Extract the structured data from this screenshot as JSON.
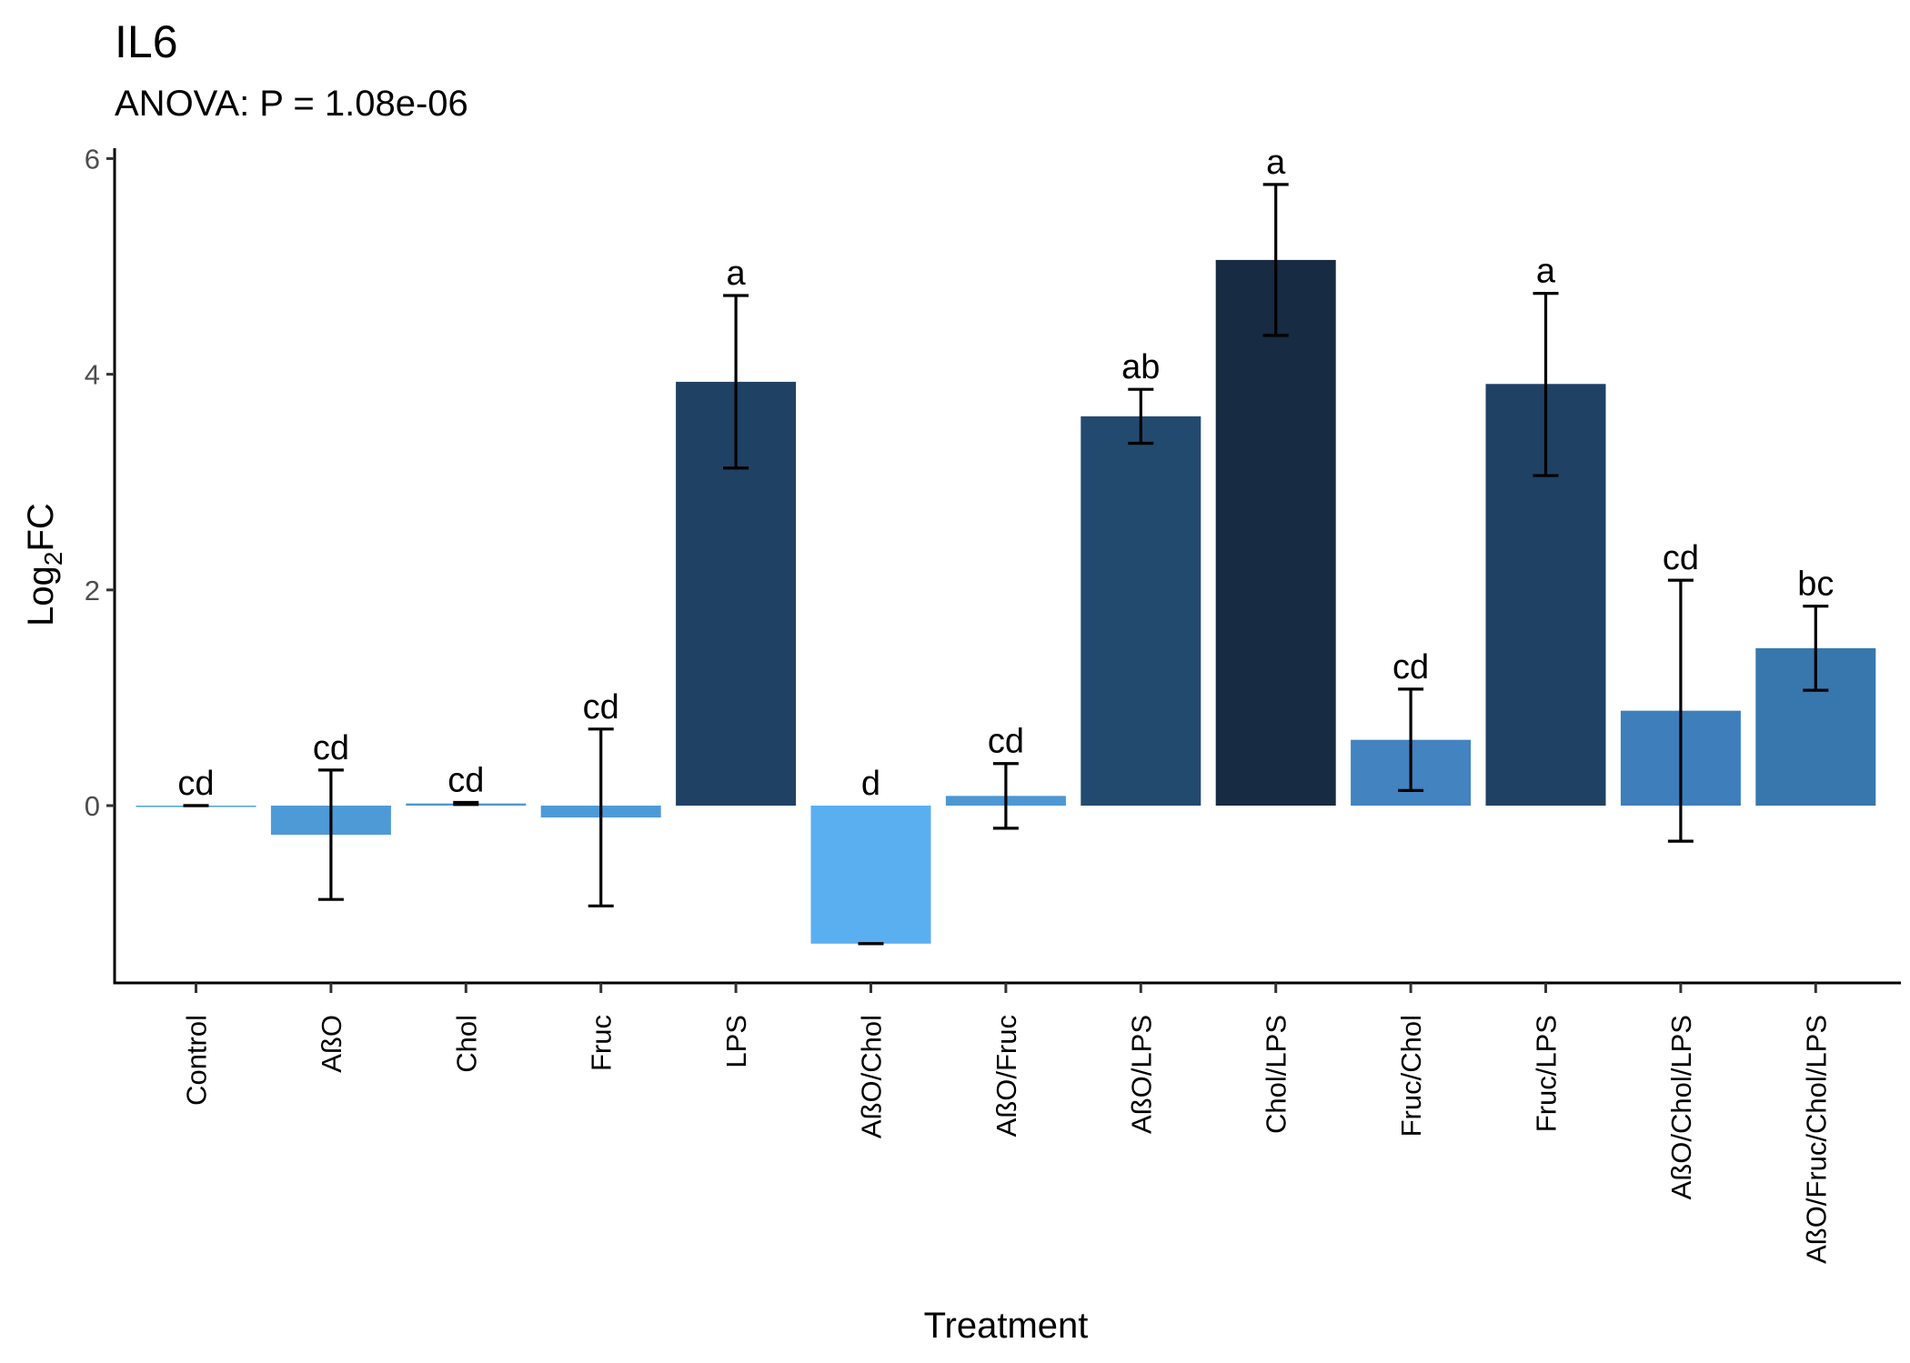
{
  "chart_data": {
    "type": "bar",
    "title": "IL6",
    "subtitle": "ANOVA: P = 1.08e-06",
    "xlabel": "Treatment",
    "ylabel": {
      "base": "Log",
      "subscript": "2",
      "suffix": "FC"
    },
    "ylim": [
      -1.6,
      6.1
    ],
    "yticks": [
      0,
      2,
      4,
      6
    ],
    "grid": false,
    "legend": "none",
    "categories": [
      "Control",
      "AßO",
      "Chol",
      "Fruc",
      "LPS",
      "AßO/Chol",
      "AßO/Fruc",
      "AßO/LPS",
      "Chol/LPS",
      "Fruc/Chol",
      "Fruc/LPS",
      "AßO/Chol/LPS",
      "AßO/Fruc/Chol/LPS"
    ],
    "values": [
      0.0,
      -0.27,
      0.02,
      -0.11,
      3.93,
      -1.28,
      0.09,
      3.61,
      5.06,
      0.61,
      3.91,
      0.88,
      1.46
    ],
    "error_low": [
      0.0,
      -0.87,
      0.01,
      -0.93,
      3.13,
      -1.28,
      -0.21,
      3.36,
      4.36,
      0.14,
      3.06,
      -0.33,
      1.07
    ],
    "error_high": [
      0.0,
      0.33,
      0.03,
      0.71,
      4.73,
      -1.28,
      0.39,
      3.86,
      5.76,
      1.08,
      4.75,
      2.09,
      1.85
    ],
    "significance": [
      "cd",
      "cd",
      "cd",
      "cd",
      "a",
      "d",
      "cd",
      "ab",
      "a",
      "cd",
      "a",
      "cd",
      "bc"
    ],
    "colors": [
      "#51a2dc",
      "#4e9ad7",
      "#4d97d4",
      "#4e9ad7",
      "#1f4163",
      "#5aaff1",
      "#4d97d4",
      "#224a6f",
      "#172b42",
      "#4283c0",
      "#1f4163",
      "#3e7fbb",
      "#3877ad"
    ],
    "error_color": "#000000"
  }
}
